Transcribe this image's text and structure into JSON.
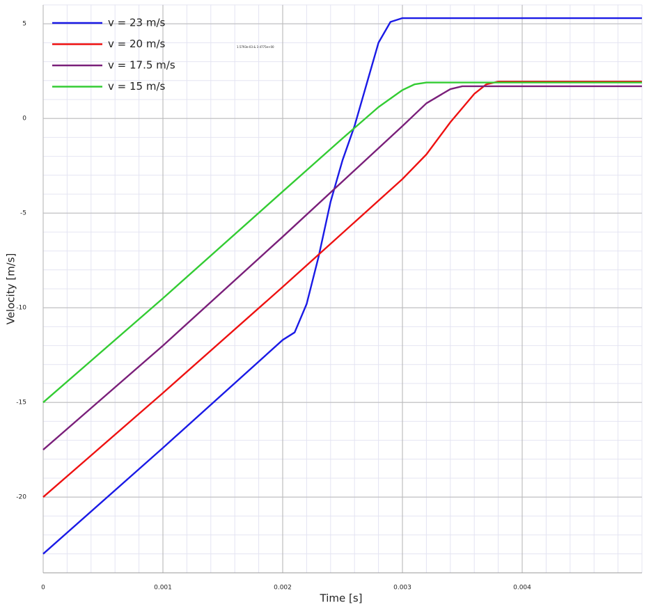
{
  "chart_data": {
    "type": "line",
    "x_label": "Time [s]",
    "y_label": "Velocity [m/s]",
    "annotation": "1.5793e-03 & 3.4775e+00",
    "xlim": [
      0,
      0.005
    ],
    "xticks": [
      0,
      0.001,
      0.002,
      0.003,
      0.004
    ],
    "ylim": [
      -24,
      6
    ],
    "yticks": [
      5,
      0,
      -5,
      -10,
      -15,
      -20
    ],
    "grid": true,
    "legend": "upper left",
    "series": [
      {
        "name": "v = 23 m/s",
        "color": "#1a1ae6",
        "x": [
          0,
          0.001,
          0.002,
          0.0021,
          0.0022,
          0.0023,
          0.0024,
          0.0025,
          0.0026,
          0.0027,
          0.0028,
          0.0029,
          0.003,
          0.005
        ],
        "values": [
          -23,
          -17.4,
          -11.7,
          -11.3,
          -9.8,
          -7.3,
          -4.4,
          -2.2,
          -0.4,
          1.8,
          4.0,
          5.1,
          5.3,
          5.3
        ]
      },
      {
        "name": "v = 20 m/s",
        "color": "#ee1111",
        "x": [
          0,
          0.001,
          0.002,
          0.003,
          0.0032,
          0.0034,
          0.0036,
          0.0037,
          0.0038,
          0.005
        ],
        "values": [
          -20,
          -14.5,
          -8.9,
          -3.2,
          -1.9,
          -0.2,
          1.3,
          1.8,
          1.95,
          1.95
        ]
      },
      {
        "name": "v = 17.5 m/s",
        "color": "#7a1f7a",
        "x": [
          0,
          0.001,
          0.002,
          0.003,
          0.0032,
          0.0034,
          0.0035,
          0.005
        ],
        "values": [
          -17.5,
          -12.0,
          -6.25,
          -0.4,
          0.8,
          1.55,
          1.7,
          1.7
        ]
      },
      {
        "name": "v = 15 m/s",
        "color": "#33cc33",
        "x": [
          0,
          0.001,
          0.002,
          0.0025,
          0.0028,
          0.003,
          0.0031,
          0.0032,
          0.005
        ],
        "values": [
          -15,
          -9.5,
          -3.86,
          -1.05,
          0.6,
          1.5,
          1.8,
          1.9,
          1.9
        ]
      }
    ]
  }
}
